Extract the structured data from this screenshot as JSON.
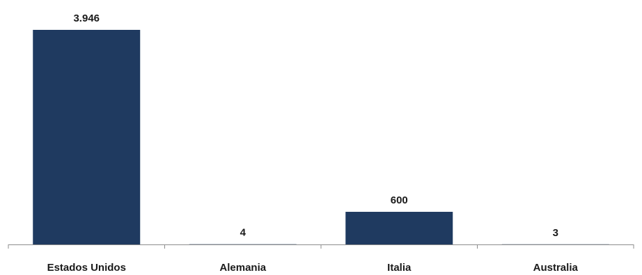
{
  "chart_data": {
    "type": "bar",
    "categories": [
      "Estados Unidos",
      "Alemania",
      "Italia",
      "Australia"
    ],
    "values": [
      3946,
      4,
      600,
      3
    ],
    "value_labels": [
      "3.946",
      "4",
      "600",
      "3"
    ],
    "title": "",
    "xlabel": "",
    "ylabel": "",
    "ylim": [
      0,
      3946
    ],
    "grid": false,
    "legend": "none",
    "colors": {
      "bar": "#1f3a60",
      "axis": "#8c8c8c",
      "text": "#1a1a1a"
    }
  }
}
